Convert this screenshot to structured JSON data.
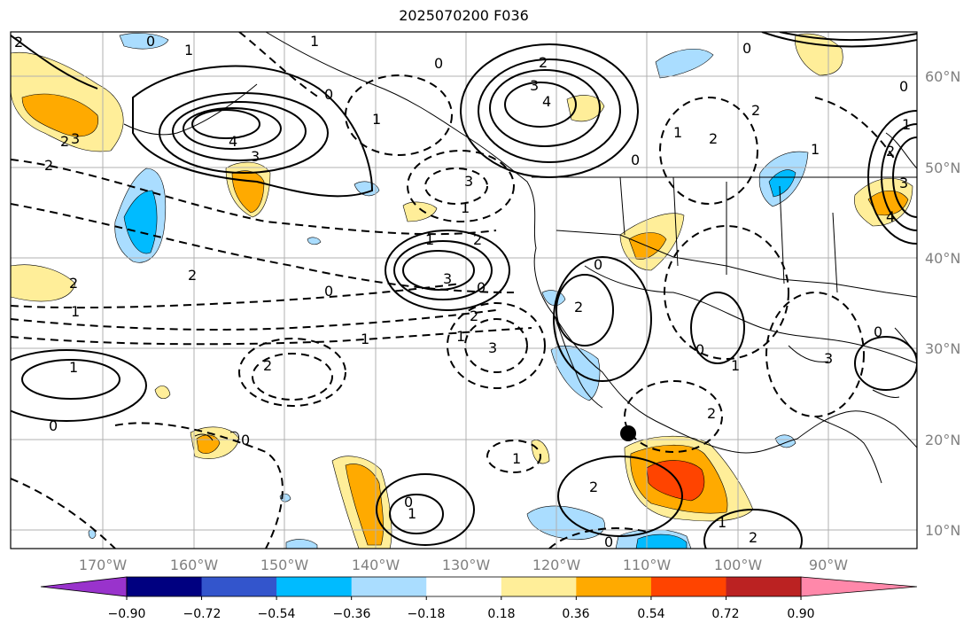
{
  "title": "2025070200 F036",
  "map": {
    "lat_labels": [
      "60°N",
      "50°N",
      "40°N",
      "30°N",
      "20°N",
      "10°N"
    ],
    "lon_labels": [
      "170°W",
      "160°W",
      "150°W",
      "140°W",
      "130°W",
      "120°W",
      "110°W",
      "100°W",
      "90°W"
    ],
    "contour_labels": [
      "2",
      "0",
      "1",
      "2",
      "3",
      "4",
      "3",
      "2",
      "1",
      "0",
      "2",
      "3",
      "4",
      "2",
      "1",
      "0",
      "2",
      "3",
      "1",
      "0",
      "2",
      "0",
      "1",
      "2",
      "1",
      "0",
      "1",
      "2",
      "3",
      "0",
      "1",
      "2",
      "3",
      "1",
      "0",
      "1",
      "2",
      "0",
      "2",
      "1",
      "0",
      "1",
      "2",
      "3",
      "4",
      "0",
      "1",
      "2",
      "3",
      "0",
      "0",
      "1",
      "1",
      "2",
      "0",
      "0",
      "1",
      "2"
    ],
    "marker": "black dot at approx 20.5°N 111°W"
  },
  "colorbar": {
    "colors": [
      "#9933cc",
      "#000080",
      "#3355cc",
      "#00bbff",
      "#aaddff",
      "#ffffff",
      "#ffee99",
      "#ffaa00",
      "#ff4400",
      "#bb2222",
      "#ff88aa"
    ],
    "tick_labels": [
      "−0.90",
      "−0.72",
      "−0.54",
      "−0.36",
      "−0.18",
      "0.18",
      "0.36",
      "0.54",
      "0.72",
      "0.90"
    ]
  }
}
